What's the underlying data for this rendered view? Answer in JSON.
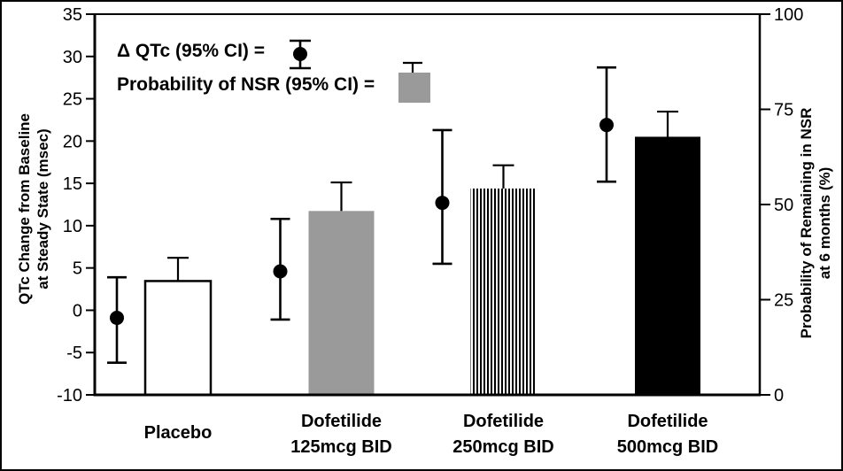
{
  "chart_data": {
    "type": "combo-bar-scatter",
    "title": "",
    "grid": false,
    "legend_position": "top-left-inside",
    "legend": [
      {
        "label": "Δ QTc (95% CI) =",
        "marker": "point-with-error-bar"
      },
      {
        "label": "Probability of NSR (95% CI) =",
        "marker": "gray-bar-with-error-bar"
      }
    ],
    "left_axis": {
      "label_line1": "QTc Change from Baseline",
      "label_line2": "at Steady State (msec)",
      "min": -10,
      "max": 35,
      "ticks": [
        35,
        30,
        25,
        20,
        15,
        10,
        5,
        0,
        -5,
        -10
      ]
    },
    "right_axis": {
      "label_line1": "Probability of Remaining in NSR",
      "label_line2": "at 6 months (%)",
      "min": 0,
      "max": 100,
      "ticks": [
        100,
        75,
        50,
        25,
        0
      ]
    },
    "categories": [
      {
        "key": "placebo",
        "label_lines": [
          "Placebo"
        ],
        "qtc_change_msec": -0.9,
        "qtc_ci_msec": [
          -6.2,
          3.9
        ],
        "nsr_probability_pct": 29.9,
        "nsr_ci_upper_pct": 36.0,
        "bar_style": "white-outline"
      },
      {
        "key": "dofetilide-125",
        "label_lines": [
          "Dofetilide",
          "125mcg BID"
        ],
        "qtc_change_msec": 4.6,
        "qtc_ci_msec": [
          -1.1,
          10.8
        ],
        "nsr_probability_pct": 48.3,
        "nsr_ci_upper_pct": 55.8,
        "bar_style": "solid-gray"
      },
      {
        "key": "dofetilide-250",
        "label_lines": [
          "Dofetilide",
          "250mcg BID"
        ],
        "qtc_change_msec": 12.7,
        "qtc_ci_msec": [
          5.5,
          21.3
        ],
        "nsr_probability_pct": 54.2,
        "nsr_ci_upper_pct": 60.3,
        "bar_style": "vertical-stripes"
      },
      {
        "key": "dofetilide-500",
        "label_lines": [
          "Dofetilide",
          "500mcg BID"
        ],
        "qtc_change_msec": 21.9,
        "qtc_ci_msec": [
          15.2,
          28.7
        ],
        "nsr_probability_pct": 67.8,
        "nsr_ci_upper_pct": 74.4,
        "bar_style": "solid-black"
      }
    ],
    "colors": {
      "gray_bar": "#9a9a9a",
      "black": "#000000",
      "white": "#ffffff"
    }
  }
}
